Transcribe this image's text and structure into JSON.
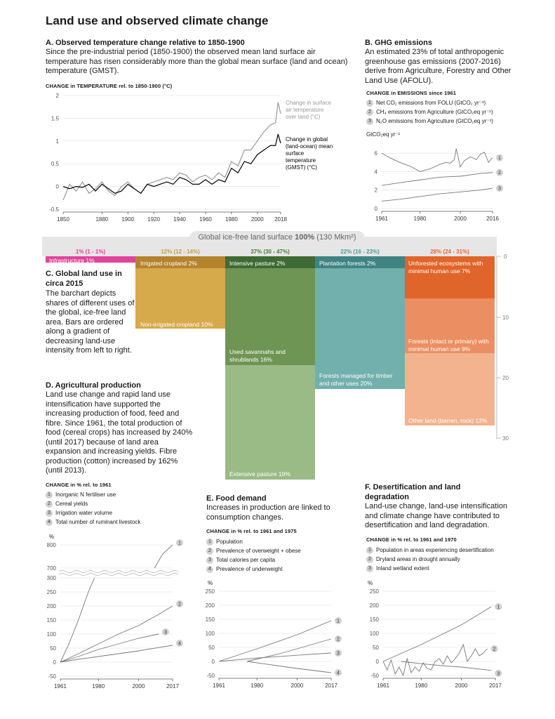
{
  "title": "Land use and observed climate change",
  "panelA": {
    "heading": "A. Observed temperature change relative to 1850-1900",
    "body": "Since the pre-industrial period (1850-1900) the observed mean land surface air temperature has risen considerably more than the global mean surface (land and ocean) temperature (GMST).",
    "caption": "CHANGE in TEMPERATURE rel. to 1850-1900 (°C)",
    "label_land": "Change in surface air temperature over land (°C)",
    "label_global": "Change in global (land-ocean) mean surface temperature (GMST) (°C)"
  },
  "panelB": {
    "heading": "B. GHG emissions",
    "body": "An estimated 23% of total anthropogenic greenhouse gas emissions (2007-2016) derive from Agriculture, Forestry and Other Land Use (AFOLU).",
    "caption": "CHANGE in EMISSIONS since 1961",
    "legend": [
      "Net CO₂ emissions from FOLU (GtCO₂ yr⁻¹)",
      "CH₄ emissions from Agriculture (GtCO₂eq yr⁻¹)",
      "N₂O emissions from Agriculture (GtCO₂eq yr⁻¹)"
    ],
    "unit": "GtCO₂eq yr⁻¹"
  },
  "panelC": {
    "global_label": "Global ice-free land surface ",
    "global_pct": "100%",
    "global_area": " (130 Mkm²)",
    "heading": "C. Global land use in circa 2015",
    "body": "The barchart depicts shares of different uses of the global, ice-free land area. Bars are ordered along a gradient of decreasing land-use intensity from left to right.",
    "pct_labels": [
      "1% (1 - 1%)",
      "12% (12 - 14%)",
      "37% (30 - 47%)",
      "22% (16 - 23%)",
      "28% (24 - 31%)"
    ],
    "segments": {
      "infrastructure": "Infrastructure 1%",
      "irrigated": "Irrigated cropland 2%",
      "nonirrigated": "Non-irrigated cropland 10%",
      "intensive": "Intensive pasture 2%",
      "savannahs": "Used savannahs and shrublands 16%",
      "extensive": "Extensive pasture 19%",
      "plantation": "Plantation forests 2%",
      "managed": "Forests managed for timber and other uses 20%",
      "unforested": "Unforested ecosystems with minimal human use 7%",
      "intact": "Forests (intact or primary) with minimal human use 9%",
      "other": "Other land (barren, rock) 12%"
    },
    "axis_ticks": [
      "0",
      "10",
      "20",
      "30"
    ]
  },
  "panelD": {
    "heading": "D. Agricultural production",
    "body": "Land use change and rapid land use intensification have supported the increasing production of food, feed and fibre. Since 1961, the total production of food (cereal crops) has increased by 240% (until 2017) because of land area expansion and increasing yields. Fibre production (cotton) increased by 162% (until 2013).",
    "caption": "CHANGE in % rel. to 1961",
    "legend": [
      "Inorganic N fertiliser use",
      "Cereal yields",
      "Irrigation water volume",
      "Total number of ruminant livestock"
    ],
    "unit": "%"
  },
  "panelE": {
    "heading": "E. Food demand",
    "body": "Increases in production are linked to consumption changes.",
    "caption": "CHANGE in % rel. to 1961 and 1975",
    "legend": [
      "Population",
      "Prevalence of overweight + obese",
      "Total calories per capita",
      "Prevalence of underweight"
    ],
    "unit": "%"
  },
  "panelF": {
    "heading": "F. Desertification and land degradation",
    "body": "Land-use change, land-use intensification and climate change have contributed to desertification and land degradation.",
    "caption": "CHANGE in % rel. to 1961 and 1970",
    "legend": [
      "Population in areas experiencing desertification",
      "Dryland areas in drought annually",
      "Inland wetland extent"
    ],
    "unit": "%"
  },
  "chart_data": [
    {
      "type": "line",
      "id": "temperature",
      "x_ticks": [
        1850,
        1880,
        1900,
        1920,
        1940,
        1960,
        1980,
        2000,
        2018
      ],
      "ylim": [
        -0.5,
        2
      ],
      "y_ticks": [
        -0.5,
        0,
        0.5,
        1,
        1.5,
        2
      ],
      "series": [
        {
          "name": "Change in surface air temperature over land (°C)",
          "color": "#999999",
          "x": [
            1850,
            1855,
            1860,
            1865,
            1870,
            1875,
            1880,
            1885,
            1890,
            1895,
            1900,
            1905,
            1910,
            1915,
            1920,
            1925,
            1930,
            1935,
            1940,
            1945,
            1950,
            1955,
            1960,
            1965,
            1970,
            1975,
            1980,
            1985,
            1990,
            1995,
            2000,
            2005,
            2010,
            2014,
            2016,
            2018
          ],
          "y": [
            -0.3,
            0.05,
            -0.1,
            0.1,
            -0.15,
            -0.05,
            0.1,
            -0.1,
            -0.2,
            0.0,
            0.1,
            -0.05,
            -0.15,
            0.05,
            0.1,
            0.15,
            0.2,
            0.15,
            0.3,
            0.25,
            0.1,
            0.2,
            0.25,
            0.15,
            0.3,
            0.2,
            0.55,
            0.45,
            0.8,
            0.8,
            1.0,
            1.2,
            1.35,
            1.4,
            1.85,
            1.6
          ]
        },
        {
          "name": "Change in global (land-ocean) mean surface temperature (GMST) (°C)",
          "color": "#000000",
          "x": [
            1850,
            1855,
            1860,
            1865,
            1870,
            1875,
            1880,
            1885,
            1890,
            1895,
            1900,
            1905,
            1910,
            1915,
            1920,
            1925,
            1930,
            1935,
            1940,
            1945,
            1950,
            1955,
            1960,
            1965,
            1970,
            1975,
            1980,
            1985,
            1990,
            1995,
            2000,
            2005,
            2010,
            2014,
            2016,
            2018
          ],
          "y": [
            0.0,
            -0.05,
            0.0,
            -0.02,
            0.05,
            -0.1,
            0.05,
            -0.05,
            -0.15,
            -0.1,
            0.05,
            -0.05,
            -0.15,
            0.05,
            0.0,
            0.05,
            0.1,
            0.05,
            0.2,
            0.15,
            0.05,
            0.05,
            0.15,
            0.05,
            0.15,
            0.1,
            0.4,
            0.3,
            0.55,
            0.5,
            0.7,
            0.8,
            0.9,
            0.9,
            1.15,
            0.95
          ]
        }
      ]
    },
    {
      "type": "line",
      "id": "emissions",
      "x_ticks": [
        1961,
        1980,
        2000,
        2016
      ],
      "ylim": [
        0,
        7
      ],
      "y_ticks": [
        0,
        2,
        4,
        6
      ],
      "series": [
        {
          "name": "Net CO₂ emissions from FOLU (GtCO₂ yr⁻¹)",
          "x": [
            1961,
            1965,
            1970,
            1975,
            1980,
            1985,
            1990,
            1993,
            1995,
            1997,
            1998,
            2000,
            2002,
            2005,
            2008,
            2010,
            2012,
            2014,
            2016
          ],
          "y": [
            6.0,
            5.5,
            5.0,
            4.6,
            4.0,
            4.3,
            4.8,
            5.0,
            4.9,
            5.3,
            6.5,
            4.5,
            5.2,
            5.6,
            5.3,
            5.9,
            6.1,
            5.0,
            5.5
          ]
        },
        {
          "name": "CH₄ emissions from Agriculture (GtCO₂eq yr⁻¹)",
          "x": [
            1961,
            1970,
            1980,
            1990,
            2000,
            2010,
            2016
          ],
          "y": [
            2.5,
            2.8,
            3.1,
            3.4,
            3.5,
            3.8,
            3.9
          ]
        },
        {
          "name": "N₂O emissions from Agriculture (GtCO₂eq yr⁻¹)",
          "x": [
            1961,
            1970,
            1980,
            1990,
            2000,
            2010,
            2016
          ],
          "y": [
            0.8,
            1.0,
            1.3,
            1.6,
            1.8,
            2.0,
            2.2
          ]
        }
      ]
    },
    {
      "type": "bar",
      "id": "land_use",
      "categories": [
        "Infrastructure",
        "Cropland",
        "Pasture/savannah",
        "Managed forest",
        "Minimal human use"
      ],
      "values": [
        1,
        12,
        37,
        22,
        28
      ],
      "stacks": [
        [
          1
        ],
        [
          2,
          10
        ],
        [
          2,
          16,
          19
        ],
        [
          2,
          20
        ],
        [
          7,
          9,
          12
        ]
      ]
    },
    {
      "type": "line",
      "id": "agriculture",
      "x_ticks": [
        1961,
        1980,
        2000,
        2017
      ],
      "y_ticks": [
        -50,
        0,
        50,
        100,
        150,
        200,
        250,
        300,
        700,
        800
      ],
      "series": [
        {
          "name": "Inorganic N fertiliser use",
          "x": [
            1961,
            1965,
            1970,
            1975,
            1978,
            2008,
            2012,
            2017
          ],
          "y": [
            0,
            60,
            150,
            250,
            300,
            700,
            760,
            800
          ]
        },
        {
          "name": "Cereal yields",
          "x": [
            1961,
            1970,
            1980,
            1990,
            2000,
            2010,
            2017
          ],
          "y": [
            0,
            30,
            65,
            100,
            130,
            170,
            200
          ]
        },
        {
          "name": "Irrigation water volume",
          "x": [
            1961,
            1970,
            1980,
            1990,
            2000,
            2010
          ],
          "y": [
            0,
            20,
            45,
            65,
            85,
            100
          ]
        },
        {
          "name": "Total number of ruminant livestock",
          "x": [
            1961,
            1970,
            1980,
            1990,
            2000,
            2010,
            2017
          ],
          "y": [
            0,
            10,
            20,
            30,
            40,
            52,
            60
          ]
        }
      ]
    },
    {
      "type": "line",
      "id": "food_demand",
      "x_ticks": [
        1961,
        1980,
        2000,
        2017
      ],
      "ylim": [
        -50,
        250
      ],
      "y_ticks": [
        -50,
        0,
        50,
        100,
        150,
        200,
        250
      ],
      "series": [
        {
          "name": "Population",
          "x": [
            1961,
            1980,
            2000,
            2017
          ],
          "y": [
            0,
            45,
            95,
            145
          ]
        },
        {
          "name": "Prevalence of overweight + obese",
          "x": [
            1975,
            1990,
            2000,
            2017
          ],
          "y": [
            0,
            25,
            45,
            80
          ]
        },
        {
          "name": "Total calories per capita",
          "x": [
            1961,
            1980,
            2000,
            2017
          ],
          "y": [
            0,
            12,
            22,
            30
          ]
        },
        {
          "name": "Prevalence of underweight",
          "x": [
            1975,
            1990,
            2000,
            2017
          ],
          "y": [
            0,
            -15,
            -25,
            -40
          ]
        }
      ]
    },
    {
      "type": "line",
      "id": "desertification",
      "x_ticks": [
        1961,
        1980,
        2000,
        2017
      ],
      "ylim": [
        -50,
        250
      ],
      "y_ticks": [
        -50,
        0,
        50,
        100,
        150,
        200,
        250
      ],
      "series": [
        {
          "name": "Population in areas experiencing desertification",
          "x": [
            1961,
            1980,
            2000,
            2015
          ],
          "y": [
            0,
            60,
            130,
            195
          ]
        },
        {
          "name": "Dryland areas in drought annually",
          "x": [
            1961,
            1963,
            1965,
            1967,
            1969,
            1971,
            1973,
            1975,
            1977,
            1979,
            1981,
            1983,
            1985,
            1987,
            1989,
            1991,
            1993,
            1995,
            1997,
            1999,
            2001,
            2003,
            2005,
            2007,
            2009,
            2011,
            2013
          ],
          "y": [
            0,
            -30,
            5,
            -45,
            -20,
            -50,
            10,
            -40,
            -20,
            -35,
            -5,
            -25,
            -30,
            0,
            10,
            -10,
            20,
            -5,
            10,
            30,
            60,
            0,
            20,
            45,
            20,
            30,
            45
          ]
        },
        {
          "name": "Inland wetland extent",
          "x": [
            1970,
            1980,
            1990,
            2000,
            2010,
            2015
          ],
          "y": [
            0,
            -8,
            -15,
            -20,
            -28,
            -32
          ]
        }
      ]
    }
  ]
}
